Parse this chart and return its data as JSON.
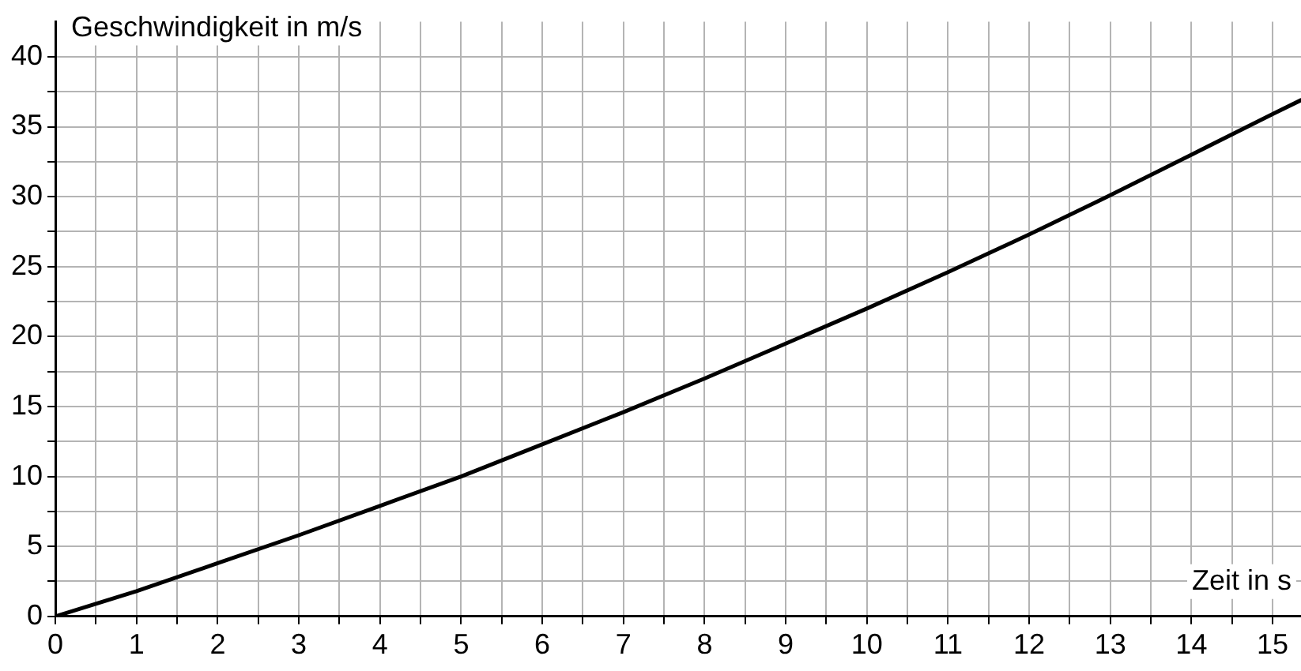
{
  "chart_data": {
    "type": "line",
    "xlabel": "Zeit in s",
    "ylabel": "Geschwindigkeit in m/s",
    "x": [
      0,
      1,
      2,
      3,
      4,
      5,
      6,
      7,
      8,
      9,
      10,
      11,
      12,
      13,
      14,
      15,
      15.35
    ],
    "series": [
      {
        "color": "#000000",
        "values": [
          0,
          1.8,
          3.8,
          5.8,
          7.9,
          10,
          12.3,
          14.6,
          17,
          19.5,
          22,
          24.6,
          27.3,
          30.1,
          33,
          35.9,
          36.9
        ]
      }
    ],
    "xlim": [
      0,
      15.35
    ],
    "ylim": [
      0,
      42.5
    ],
    "xticks": [
      0,
      {
        "value": 0.5,
        "label": null
      },
      1,
      {
        "value": 1.5,
        "label": null
      },
      2,
      {
        "value": 2.5,
        "label": null
      },
      3,
      {
        "value": 3.5,
        "label": null
      },
      4,
      {
        "value": 4.5,
        "label": null
      },
      5,
      {
        "value": 5.5,
        "label": null
      },
      6,
      {
        "value": 6.5,
        "label": null
      },
      7,
      {
        "value": 7.5,
        "label": null
      },
      8,
      {
        "value": 8.5,
        "label": null
      },
      9,
      {
        "value": 9.5,
        "label": null
      },
      10,
      {
        "value": 10.5,
        "label": null
      },
      11,
      {
        "value": 11.5,
        "label": null
      },
      12,
      {
        "value": 12.5,
        "label": null
      },
      13,
      {
        "value": 13.5,
        "label": null
      },
      14,
      {
        "value": 14.5,
        "label": null
      },
      15
    ],
    "yticks": [
      0,
      {
        "value": 2.5,
        "label": null
      },
      5,
      {
        "value": 7.5,
        "label": null
      },
      10,
      {
        "value": 12.5,
        "label": null
      },
      15,
      {
        "value": 17.5,
        "label": null
      },
      20,
      {
        "value": 22.5,
        "label": null
      },
      25,
      {
        "value": 27.5,
        "label": null
      },
      30,
      {
        "value": 32.5,
        "label": null
      },
      35,
      {
        "value": 37.5,
        "label": null
      },
      40
    ],
    "grid": true,
    "legend": false,
    "marker": "none",
    "line_style": "solid"
  }
}
